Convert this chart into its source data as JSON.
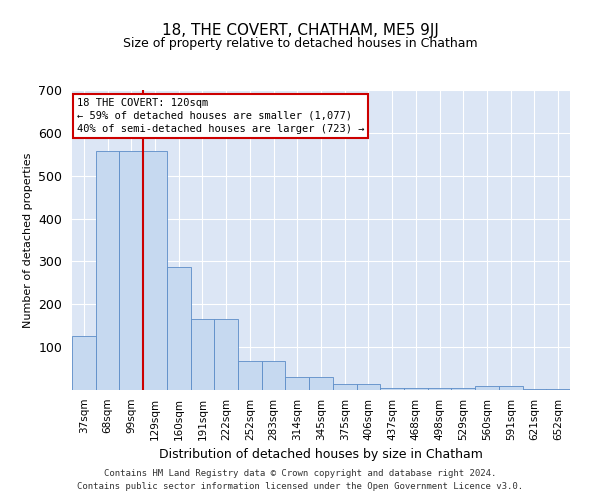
{
  "title": "18, THE COVERT, CHATHAM, ME5 9JJ",
  "subtitle": "Size of property relative to detached houses in Chatham",
  "xlabel": "Distribution of detached houses by size in Chatham",
  "ylabel": "Number of detached properties",
  "categories": [
    "37sqm",
    "68sqm",
    "99sqm",
    "129sqm",
    "160sqm",
    "191sqm",
    "222sqm",
    "252sqm",
    "283sqm",
    "314sqm",
    "345sqm",
    "375sqm",
    "406sqm",
    "437sqm",
    "468sqm",
    "498sqm",
    "529sqm",
    "560sqm",
    "591sqm",
    "621sqm",
    "652sqm"
  ],
  "values": [
    125,
    557,
    557,
    557,
    288,
    165,
    165,
    68,
    68,
    30,
    30,
    15,
    15,
    5,
    5,
    5,
    5,
    10,
    10,
    2,
    2
  ],
  "bar_color": "#c6d9f0",
  "bar_edge_color": "#5b8cc8",
  "property_label": "18 THE COVERT: 120sqm",
  "annotation_line1": "← 59% of detached houses are smaller (1,077)",
  "annotation_line2": "40% of semi-detached houses are larger (723) →",
  "annotation_box_color": "#ffffff",
  "annotation_box_edge": "#cc0000",
  "vline_color": "#cc0000",
  "vline_x": 2.5,
  "ylim": [
    0,
    700
  ],
  "yticks": [
    0,
    100,
    200,
    300,
    400,
    500,
    600,
    700
  ],
  "background_color": "#dce6f5",
  "footer_line1": "Contains HM Land Registry data © Crown copyright and database right 2024.",
  "footer_line2": "Contains public sector information licensed under the Open Government Licence v3.0.",
  "title_fontsize": 11,
  "subtitle_fontsize": 9,
  "ylabel_fontsize": 8,
  "xlabel_fontsize": 9,
  "tick_fontsize": 7.5,
  "footer_fontsize": 6.5
}
